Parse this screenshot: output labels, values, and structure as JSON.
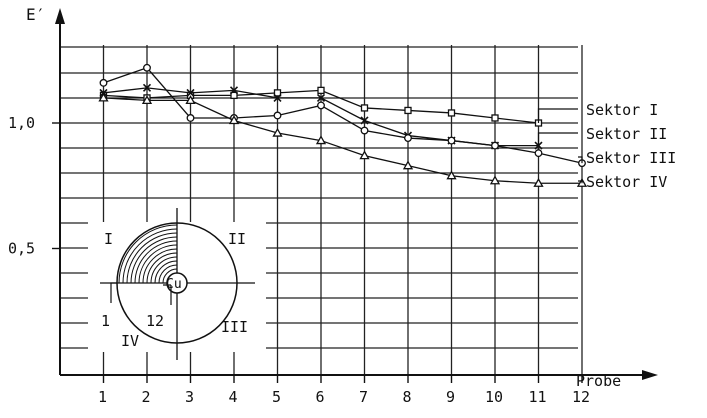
{
  "chart_data": {
    "type": "line",
    "ylabel": "E′",
    "xlabel": "Probe",
    "x_ticks": [
      "1",
      "2",
      "3",
      "4",
      "5",
      "6",
      "7",
      "8",
      "9",
      "10",
      "11",
      "12"
    ],
    "y_ticks": [
      {
        "value": 0.5,
        "label": "0,5"
      },
      {
        "value": 1.0,
        "label": "1,0"
      }
    ],
    "xlim": [
      0.3,
      13
    ],
    "ylim": [
      0.0,
      1.3
    ],
    "grid": true,
    "series": [
      {
        "name": "Sektor I",
        "marker": "square",
        "x": [
          1,
          2,
          3,
          4,
          5,
          6,
          7,
          8,
          9,
          10,
          11
        ],
        "y": [
          1.11,
          1.1,
          1.11,
          1.11,
          1.12,
          1.13,
          1.06,
          1.05,
          1.04,
          1.02,
          1.0
        ]
      },
      {
        "name": "Sektor II",
        "marker": "cross",
        "x": [
          1,
          2,
          3,
          4,
          5,
          6,
          7,
          8,
          9,
          10,
          11
        ],
        "y": [
          1.12,
          1.14,
          1.12,
          1.13,
          1.1,
          1.1,
          1.01,
          0.95,
          0.93,
          0.91,
          0.91
        ]
      },
      {
        "name": "Sektor III",
        "marker": "circle",
        "x": [
          1,
          2,
          3,
          4,
          5,
          6,
          7,
          8,
          9,
          10,
          11,
          12
        ],
        "y": [
          1.16,
          1.22,
          1.02,
          1.02,
          1.03,
          1.07,
          0.97,
          0.94,
          0.93,
          0.91,
          0.88,
          0.84
        ]
      },
      {
        "name": "Sektor IV",
        "marker": "triangle",
        "x": [
          1,
          2,
          3,
          4,
          5,
          6,
          7,
          8,
          9,
          10,
          11,
          12
        ],
        "y": [
          1.1,
          1.09,
          1.09,
          1.01,
          0.96,
          0.93,
          0.87,
          0.83,
          0.79,
          0.77,
          0.76,
          0.76
        ]
      }
    ]
  },
  "inset": {
    "quadrant_labels": [
      "I",
      "II",
      "III",
      "IV"
    ],
    "center_label": "Cu",
    "ring_start_label": "1",
    "ring_end_label": "12"
  }
}
